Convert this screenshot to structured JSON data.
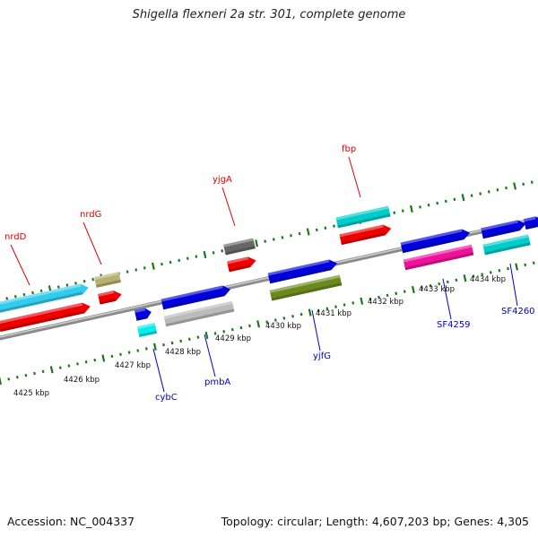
{
  "title": "Shigella flexneri 2a str. 301, complete genome",
  "footer": {
    "accession": "Accession: NC_004337",
    "summary": "Topology: circular; Length: 4,607,203 bp; Genes: 4,305"
  },
  "colors": {
    "backbone": "#8a8a8a",
    "tick": "#1a7a1a",
    "forward_label": "#dd0000",
    "reverse_label": "#0000cc"
  },
  "scale_labels": [
    "4425 kbp",
    "4426 kbp",
    "4427 kbp",
    "4428 kbp",
    "4429 kbp",
    "4430 kbp",
    "4431 kbp",
    "4432 kbp",
    "4433 kbp",
    "4434 kbp"
  ],
  "gene_labels": {
    "forward": [
      "nrdD",
      "nrdG",
      "yjgA",
      "fbp"
    ],
    "reverse": [
      "cybC",
      "pmbA",
      "yjfG",
      "SF4259",
      "SF4260"
    ]
  }
}
